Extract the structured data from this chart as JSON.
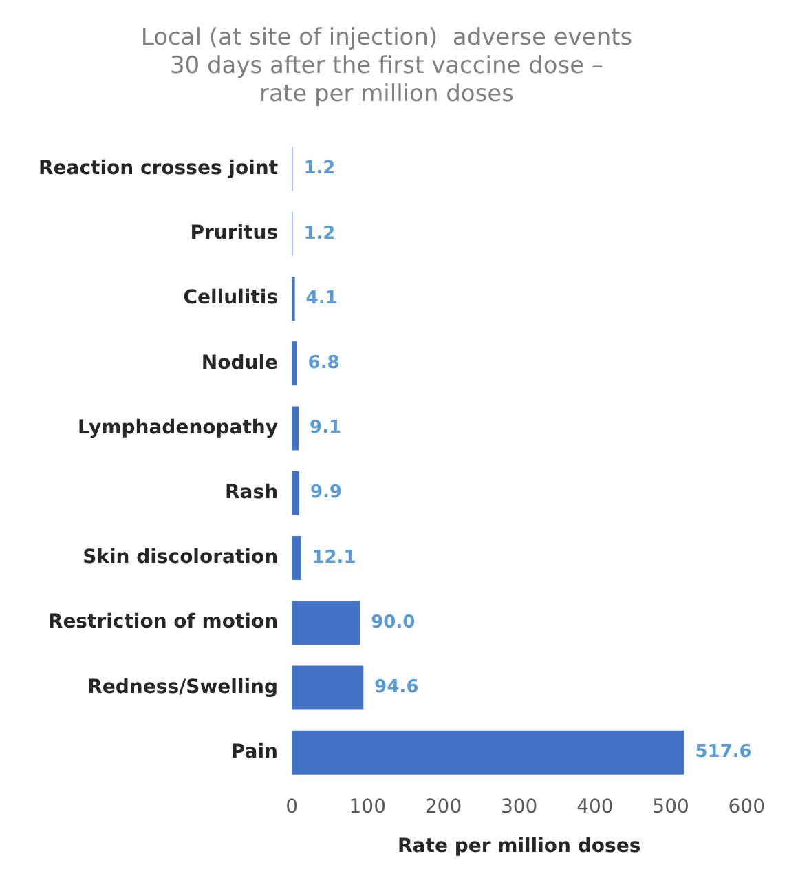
{
  "chart_data": {
    "type": "bar",
    "orientation": "horizontal",
    "title": "Local (at site of injection)  adverse events\n30 days after the first vaccine dose –\nrate per million doses",
    "xlabel": "Rate per million doses",
    "categories": [
      "Reaction crosses joint",
      "Pruritus",
      "Cellulitis",
      "Nodule",
      "Lymphadenopathy",
      "Rash",
      "Skin discoloration",
      "Restriction of motion",
      "Redness/Swelling",
      "Pain"
    ],
    "values": [
      1.2,
      1.2,
      4.1,
      6.8,
      9.1,
      9.9,
      12.1,
      90.0,
      94.6,
      517.6
    ],
    "value_labels": [
      "1.2",
      "1.2",
      "4.1",
      "6.8",
      "9.1",
      "9.9",
      "12.1",
      "90.0",
      "94.6",
      "517.6"
    ],
    "color": "#4472c4",
    "xlim": [
      0,
      600
    ],
    "xticks": [
      0,
      100,
      200,
      300,
      400,
      500,
      600
    ],
    "grid": false,
    "legend": false
  }
}
